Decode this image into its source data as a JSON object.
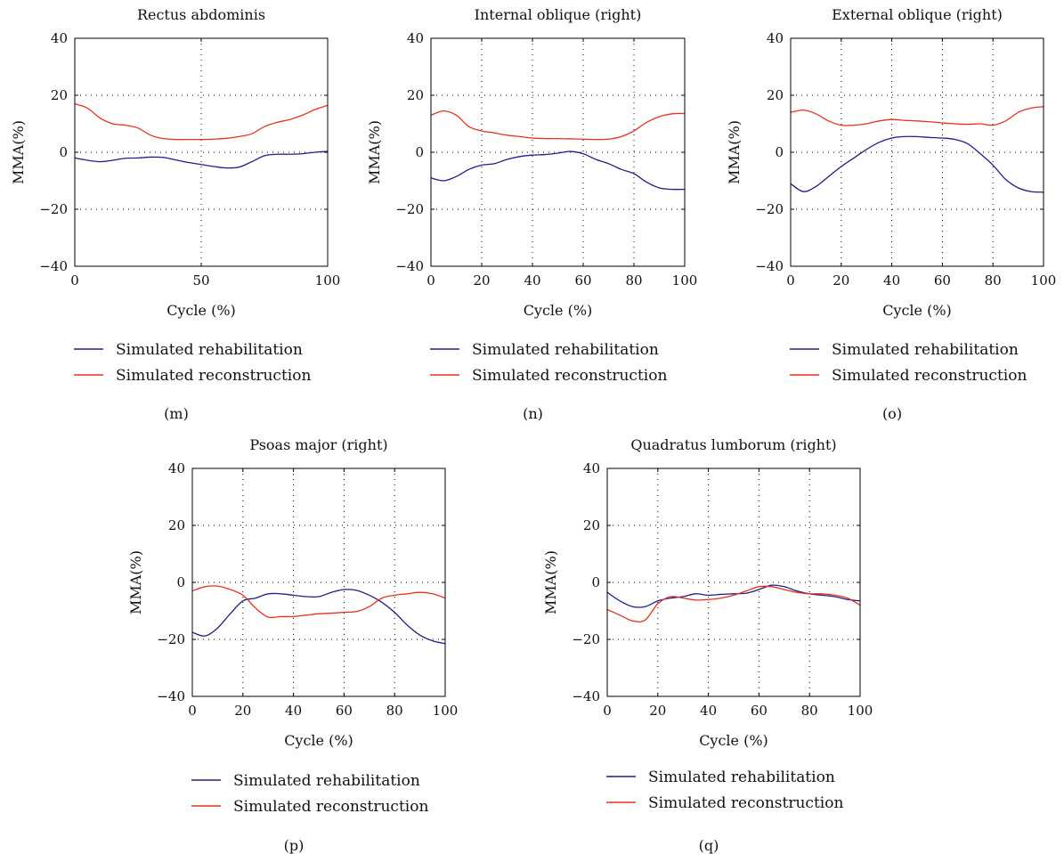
{
  "colors": {
    "rehabilitation": "#1f1f8c",
    "reconstruction": "#e8321e"
  },
  "chart_data": [
    {
      "type": "line",
      "panel_label": "(m)",
      "title": "Rectus abdominis",
      "xlabel": "Cycle (%)",
      "ylabel": "MMA(%)",
      "xlim": [
        0,
        100
      ],
      "ylim": [
        -40,
        40
      ],
      "xticks": [
        0,
        50,
        100
      ],
      "yticks": [
        -40,
        -20,
        0,
        20,
        40
      ],
      "xtick_labels": [
        "0",
        "50",
        "100"
      ],
      "ytick_labels": [
        "−40",
        "−20",
        "0",
        "20",
        "40"
      ],
      "grid": true,
      "legend_position": "below",
      "series": [
        {
          "name": "Simulated rehabilitation",
          "color_key": "rehabilitation",
          "x": [
            0,
            5,
            10,
            15,
            20,
            25,
            30,
            35,
            40,
            45,
            50,
            55,
            60,
            65,
            70,
            75,
            80,
            85,
            90,
            95,
            100
          ],
          "y": [
            -2,
            -2.8,
            -3.3,
            -2.8,
            -2.1,
            -2.0,
            -1.7,
            -1.8,
            -2.7,
            -3.6,
            -4.3,
            -5.0,
            -5.5,
            -5.2,
            -3.3,
            -1.2,
            -0.7,
            -0.7,
            -0.5,
            0,
            0.3
          ]
        },
        {
          "name": "Simulated reconstruction",
          "color_key": "reconstruction",
          "x": [
            0,
            5,
            10,
            15,
            20,
            25,
            30,
            35,
            40,
            45,
            50,
            55,
            60,
            65,
            70,
            75,
            80,
            85,
            90,
            95,
            100
          ],
          "y": [
            17,
            15.5,
            12,
            10,
            9.5,
            8.5,
            6,
            4.8,
            4.5,
            4.5,
            4.5,
            4.6,
            4.9,
            5.5,
            6.5,
            9,
            10.5,
            11.5,
            13,
            15,
            16.5
          ]
        }
      ]
    },
    {
      "type": "line",
      "panel_label": "(n)",
      "title": "Internal oblique (right)",
      "xlabel": "Cycle (%)",
      "ylabel": "MMA(%)",
      "xlim": [
        0,
        100
      ],
      "ylim": [
        -40,
        40
      ],
      "xticks": [
        0,
        20,
        40,
        60,
        80,
        100
      ],
      "yticks": [
        -40,
        -20,
        0,
        20,
        40
      ],
      "xtick_labels": [
        "0",
        "20",
        "40",
        "60",
        "80",
        "100"
      ],
      "ytick_labels": [
        "−40",
        "−20",
        "0",
        "20",
        "40"
      ],
      "grid": true,
      "legend_position": "below",
      "series": [
        {
          "name": "Simulated rehabilitation",
          "color_key": "rehabilitation",
          "x": [
            0,
            5,
            10,
            15,
            20,
            25,
            30,
            35,
            40,
            45,
            50,
            55,
            60,
            65,
            70,
            75,
            80,
            85,
            90,
            95,
            100
          ],
          "y": [
            -9,
            -10,
            -8.5,
            -6,
            -4.5,
            -4,
            -2.5,
            -1.5,
            -1,
            -0.8,
            -0.3,
            0.3,
            -0.5,
            -2.5,
            -4,
            -6,
            -7.5,
            -10.5,
            -12.5,
            -13,
            -13
          ]
        },
        {
          "name": "Simulated reconstruction",
          "color_key": "reconstruction",
          "x": [
            0,
            5,
            10,
            15,
            20,
            25,
            30,
            35,
            40,
            45,
            50,
            55,
            60,
            65,
            70,
            75,
            80,
            85,
            90,
            95,
            100
          ],
          "y": [
            13,
            14.5,
            13,
            9,
            7.5,
            6.8,
            6,
            5.5,
            5,
            4.8,
            4.8,
            4.7,
            4.6,
            4.5,
            4.6,
            5.5,
            7.5,
            10.5,
            12.5,
            13.5,
            13.6
          ]
        }
      ]
    },
    {
      "type": "line",
      "panel_label": "(o)",
      "title": "External oblique (right)",
      "xlabel": "Cycle (%)",
      "ylabel": "MMA(%)",
      "xlim": [
        0,
        100
      ],
      "ylim": [
        -40,
        40
      ],
      "xticks": [
        0,
        20,
        40,
        60,
        80,
        100
      ],
      "yticks": [
        -40,
        -20,
        0,
        20,
        40
      ],
      "xtick_labels": [
        "0",
        "20",
        "40",
        "60",
        "80",
        "100"
      ],
      "ytick_labels": [
        "−40",
        "−20",
        "0",
        "20",
        "40"
      ],
      "grid": true,
      "legend_position": "below",
      "series": [
        {
          "name": "Simulated rehabilitation",
          "color_key": "rehabilitation",
          "x": [
            0,
            5,
            10,
            15,
            20,
            25,
            30,
            35,
            40,
            45,
            50,
            55,
            60,
            65,
            70,
            75,
            80,
            85,
            90,
            95,
            100
          ],
          "y": [
            -11,
            -13.8,
            -12,
            -8.5,
            -5,
            -2,
            1,
            3.5,
            5,
            5.5,
            5.5,
            5.2,
            5,
            4.5,
            3,
            -0.5,
            -4.5,
            -9.5,
            -12.5,
            -13.8,
            -14
          ]
        },
        {
          "name": "Simulated reconstruction",
          "color_key": "reconstruction",
          "x": [
            0,
            5,
            10,
            15,
            20,
            25,
            30,
            35,
            40,
            45,
            50,
            55,
            60,
            65,
            70,
            75,
            80,
            85,
            90,
            95,
            100
          ],
          "y": [
            14,
            14.8,
            13.5,
            11,
            9.5,
            9.5,
            10,
            11,
            11.5,
            11.2,
            11,
            10.7,
            10.3,
            10,
            9.8,
            10,
            9.5,
            11,
            14,
            15.5,
            16
          ]
        }
      ]
    },
    {
      "type": "line",
      "panel_label": "(p)",
      "title": "Psoas major (right)",
      "xlabel": "Cycle (%)",
      "ylabel": "MMA(%)",
      "xlim": [
        0,
        100
      ],
      "ylim": [
        -40,
        40
      ],
      "xticks": [
        0,
        20,
        40,
        60,
        80,
        100
      ],
      "yticks": [
        -40,
        -20,
        0,
        20,
        40
      ],
      "xtick_labels": [
        "0",
        "20",
        "40",
        "60",
        "80",
        "100"
      ],
      "ytick_labels": [
        "−40",
        "−20",
        "0",
        "20",
        "40"
      ],
      "grid": true,
      "legend_position": "below",
      "series": [
        {
          "name": "Simulated rehabilitation",
          "color_key": "rehabilitation",
          "x": [
            0,
            5,
            10,
            15,
            20,
            25,
            30,
            35,
            40,
            45,
            50,
            55,
            60,
            65,
            70,
            75,
            80,
            85,
            90,
            95,
            100
          ],
          "y": [
            -17.5,
            -18.8,
            -16,
            -11,
            -6.5,
            -5.5,
            -4,
            -4,
            -4.5,
            -5,
            -5,
            -3.5,
            -2.5,
            -2.8,
            -4.5,
            -7,
            -10.5,
            -15,
            -18.5,
            -20.5,
            -21.5
          ]
        },
        {
          "name": "Simulated reconstruction",
          "color_key": "reconstruction",
          "x": [
            0,
            5,
            10,
            15,
            20,
            25,
            30,
            35,
            40,
            45,
            50,
            55,
            60,
            65,
            70,
            75,
            80,
            85,
            90,
            95,
            100
          ],
          "y": [
            -3,
            -1.5,
            -1.3,
            -2.5,
            -4.5,
            -9,
            -12.2,
            -12,
            -12,
            -11.5,
            -11,
            -10.8,
            -10.5,
            -10.2,
            -8.5,
            -5.5,
            -4.5,
            -4,
            -3.5,
            -4,
            -5.5
          ]
        }
      ]
    },
    {
      "type": "line",
      "panel_label": "(q)",
      "title": "Quadratus lumborum (right)",
      "xlabel": "Cycle (%)",
      "ylabel": "MMA(%)",
      "xlim": [
        0,
        100
      ],
      "ylim": [
        -40,
        40
      ],
      "xticks": [
        0,
        20,
        40,
        60,
        80,
        100
      ],
      "yticks": [
        -40,
        -20,
        0,
        20,
        40
      ],
      "xtick_labels": [
        "0",
        "20",
        "40",
        "60",
        "80",
        "100"
      ],
      "ytick_labels": [
        "−40",
        "−20",
        "0",
        "20",
        "40"
      ],
      "grid": true,
      "legend_position": "below",
      "series": [
        {
          "name": "Simulated rehabilitation",
          "color_key": "rehabilitation",
          "x": [
            0,
            5,
            10,
            15,
            20,
            25,
            30,
            35,
            40,
            45,
            50,
            55,
            60,
            65,
            70,
            75,
            80,
            85,
            90,
            95,
            100
          ],
          "y": [
            -3.5,
            -6.5,
            -8.5,
            -8.5,
            -6.5,
            -5.5,
            -5,
            -4,
            -4.5,
            -4.2,
            -4,
            -3.8,
            -2.5,
            -1,
            -1.5,
            -3,
            -4,
            -4.5,
            -5,
            -6,
            -6.5
          ]
        },
        {
          "name": "Simulated reconstruction",
          "color_key": "reconstruction",
          "x": [
            0,
            5,
            10,
            15,
            20,
            25,
            30,
            35,
            40,
            45,
            50,
            55,
            60,
            65,
            70,
            75,
            80,
            85,
            90,
            95,
            100
          ],
          "y": [
            -9.5,
            -11.5,
            -13.5,
            -13.2,
            -7.5,
            -5,
            -5.5,
            -6.2,
            -6,
            -5.5,
            -4.5,
            -3,
            -1.5,
            -1.5,
            -2.5,
            -3.5,
            -4,
            -4,
            -4.5,
            -5.5,
            -8
          ]
        }
      ]
    }
  ]
}
